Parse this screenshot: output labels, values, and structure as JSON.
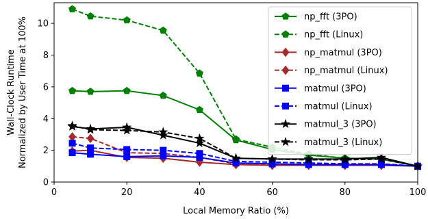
{
  "chart_data": {
    "type": "line",
    "title": "",
    "xlabel": "Local Memory Ratio (%)",
    "ylabel_lines": [
      "Wall-Clock Runtime",
      "Normalized by User Time at 100%"
    ],
    "xlim": [
      0,
      100
    ],
    "ylim": [
      0,
      11.3
    ],
    "xticks": [
      0,
      20,
      40,
      60,
      80,
      100
    ],
    "yticks": [
      0,
      2,
      4,
      6,
      8,
      10
    ],
    "grid": false,
    "legend_position": "top-right",
    "series": [
      {
        "name": "np_fft (3PO)",
        "color": "#008000",
        "dash": "solid",
        "marker": "pentagon",
        "x": [
          5,
          10,
          20,
          30,
          40,
          50,
          60,
          70,
          80,
          90,
          100
        ],
        "y": [
          5.75,
          5.7,
          5.75,
          5.45,
          4.55,
          2.65,
          2.05,
          1.7,
          1.5,
          1.45,
          1.0
        ]
      },
      {
        "name": "np_fft (Linux)",
        "color": "#008000",
        "dash": "dashed",
        "marker": "pentagon",
        "x": [
          5,
          10,
          20,
          30,
          40,
          50,
          60,
          70,
          80,
          90,
          100
        ],
        "y": [
          10.9,
          10.45,
          10.2,
          9.55,
          6.85,
          2.7,
          2.2,
          1.75,
          1.5,
          1.45,
          1.0
        ]
      },
      {
        "name": "np_matmul (3PO)",
        "color": "#a52a2a",
        "dash": "solid",
        "marker": "diamond",
        "x": [
          5,
          10,
          20,
          30,
          40,
          50,
          60,
          70,
          80,
          90,
          100
        ],
        "y": [
          1.95,
          2.0,
          1.55,
          1.5,
          1.25,
          1.1,
          1.05,
          1.05,
          1.05,
          1.05,
          1.0
        ]
      },
      {
        "name": "np_matmul (Linux)",
        "color": "#a52a2a",
        "dash": "dashed",
        "marker": "diamond",
        "x": [
          5,
          10,
          20,
          30,
          40,
          50,
          60,
          70,
          80,
          90,
          100
        ],
        "y": [
          2.85,
          2.75,
          1.85,
          1.8,
          1.55,
          1.15,
          1.1,
          1.1,
          1.1,
          1.1,
          1.0
        ]
      },
      {
        "name": "matmul (3PO)",
        "color": "#0000ff",
        "dash": "solid",
        "marker": "square",
        "x": [
          5,
          10,
          20,
          30,
          40,
          50,
          60,
          70,
          80,
          90,
          100
        ],
        "y": [
          1.85,
          1.75,
          1.6,
          1.65,
          1.55,
          1.2,
          1.15,
          1.1,
          1.1,
          1.1,
          1.0
        ]
      },
      {
        "name": "matmul (Linux)",
        "color": "#0000ff",
        "dash": "dashed",
        "marker": "square",
        "x": [
          5,
          10,
          20,
          30,
          40,
          50,
          60,
          70,
          80,
          90,
          100
        ],
        "y": [
          2.45,
          2.15,
          2.05,
          2.0,
          1.8,
          1.3,
          1.25,
          1.2,
          1.15,
          1.15,
          1.0
        ]
      },
      {
        "name": "matmul_3 (3PO)",
        "color": "#000000",
        "dash": "solid",
        "marker": "star",
        "x": [
          5,
          10,
          20,
          30,
          40,
          50,
          60,
          70,
          80,
          90,
          100
        ],
        "y": [
          3.5,
          3.35,
          3.45,
          2.95,
          2.45,
          1.5,
          1.45,
          1.45,
          1.45,
          1.55,
          1.0
        ]
      },
      {
        "name": "matmul_3 (Linux)",
        "color": "#000000",
        "dash": "dashed",
        "marker": "star",
        "x": [
          5,
          10,
          20,
          30,
          40,
          50,
          60,
          70,
          80,
          90,
          100
        ],
        "y": [
          3.55,
          3.3,
          3.25,
          3.15,
          2.75,
          1.5,
          1.45,
          1.4,
          1.4,
          1.45,
          1.0
        ]
      }
    ]
  }
}
